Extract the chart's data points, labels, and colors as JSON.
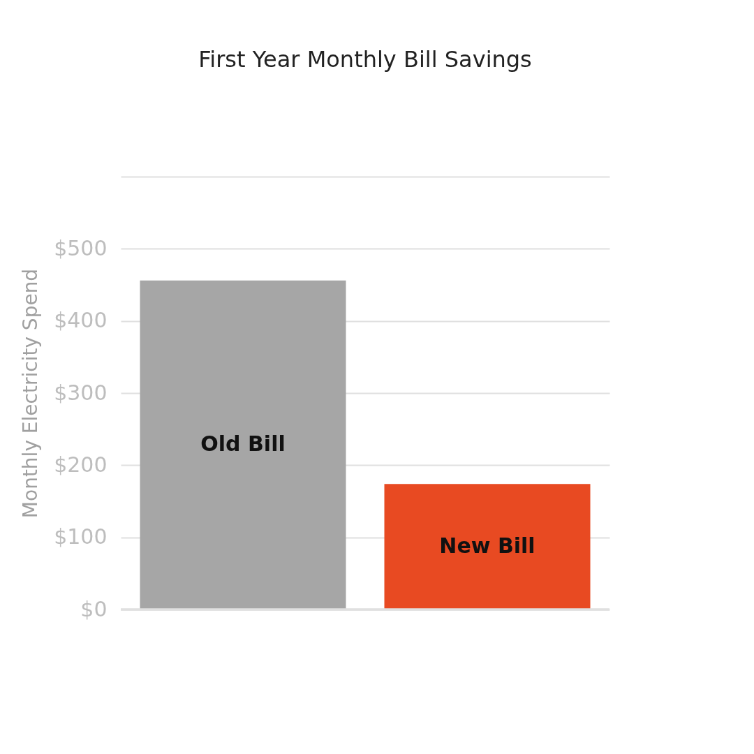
{
  "chart_data": {
    "type": "bar",
    "title": "First Year Monthly Bill Savings",
    "ylabel": "Monthly Electricity Spend",
    "categories": [
      "Old Bill",
      "New Bill"
    ],
    "values": [
      456,
      174
    ],
    "colors": [
      "#a6a6a6",
      "#e84a22"
    ],
    "ylim": [
      0,
      600
    ],
    "yticks": [
      {
        "value": 0,
        "label": "$0"
      },
      {
        "value": 100,
        "label": "$100"
      },
      {
        "value": 200,
        "label": "$200"
      },
      {
        "value": 300,
        "label": "$300"
      },
      {
        "value": 400,
        "label": "$400"
      },
      {
        "value": 500,
        "label": "$500"
      },
      {
        "value": 600,
        "label": null
      }
    ],
    "grid": "y"
  }
}
